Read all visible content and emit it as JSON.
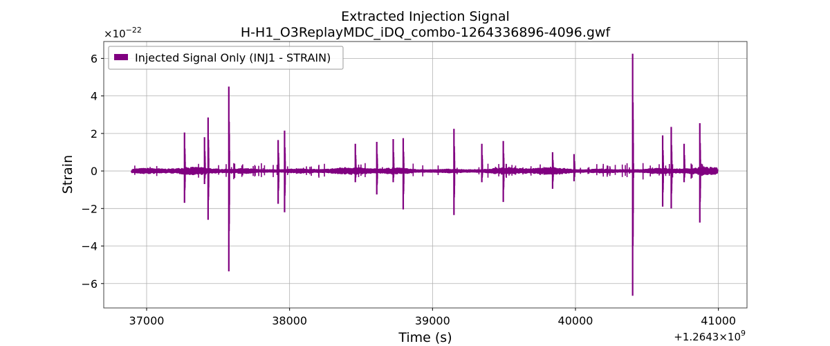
{
  "chart_data": {
    "type": "line",
    "title": "Extracted Injection Signal",
    "subtitle": "H-H1_O3ReplayMDC_iDQ_combo-1264336896-4096.gwf",
    "xlabel": "Time (s)",
    "ylabel": "Strain",
    "x_offset_label": "+1.2643×10",
    "x_offset_exponent": "9",
    "y_multiplier_label": "×10",
    "y_multiplier_exponent": "−22",
    "xlim": [
      36700,
      41200
    ],
    "ylim": [
      -7.3,
      6.9
    ],
    "x_ticks": [
      {
        "value": 37000,
        "label": "37000"
      },
      {
        "value": 38000,
        "label": "38000"
      },
      {
        "value": 39000,
        "label": "39000"
      },
      {
        "value": 40000,
        "label": "40000"
      },
      {
        "value": 41000,
        "label": "41000"
      }
    ],
    "y_ticks": [
      {
        "value": -6,
        "label": "−6"
      },
      {
        "value": -4,
        "label": "−4"
      },
      {
        "value": -2,
        "label": "−2"
      },
      {
        "value": 0,
        "label": "0"
      },
      {
        "value": 2,
        "label": "2"
      },
      {
        "value": 4,
        "label": "4"
      },
      {
        "value": 6,
        "label": "6"
      }
    ],
    "grid": true,
    "legend_position": "top-left",
    "series": [
      {
        "name": "Injected Signal Only (INJ1 - STRAIN)",
        "color": "#800080",
        "data_range": [
          36896,
          40992
        ],
        "baseline_amplitude": 0.09,
        "bursts": [
          {
            "x": 37265,
            "ymax": 2.05,
            "ymin": -1.7
          },
          {
            "x": 37405,
            "ymax": 1.8,
            "ymin": -0.7
          },
          {
            "x": 37430,
            "ymax": 2.85,
            "ymin": -2.6
          },
          {
            "x": 37575,
            "ymax": 4.5,
            "ymin": -5.35
          },
          {
            "x": 37920,
            "ymax": 1.65,
            "ymin": -1.75
          },
          {
            "x": 37965,
            "ymax": 2.15,
            "ymin": -2.2
          },
          {
            "x": 38460,
            "ymax": 1.45,
            "ymin": -0.6
          },
          {
            "x": 38610,
            "ymax": 1.55,
            "ymin": -1.25
          },
          {
            "x": 38725,
            "ymax": 1.7,
            "ymin": -0.6
          },
          {
            "x": 38795,
            "ymax": 1.75,
            "ymin": -2.05
          },
          {
            "x": 39150,
            "ymax": 2.25,
            "ymin": -2.35
          },
          {
            "x": 39345,
            "ymax": 1.45,
            "ymin": -0.6
          },
          {
            "x": 39495,
            "ymax": 1.6,
            "ymin": -1.65
          },
          {
            "x": 39840,
            "ymax": 1.0,
            "ymin": -0.95
          },
          {
            "x": 39990,
            "ymax": 0.9,
            "ymin": -0.55
          },
          {
            "x": 40400,
            "ymax": 6.25,
            "ymin": -6.65
          },
          {
            "x": 40610,
            "ymax": 1.9,
            "ymin": -1.9
          },
          {
            "x": 40670,
            "ymax": 2.35,
            "ymin": -2.0
          },
          {
            "x": 40760,
            "ymax": 1.45,
            "ymin": -0.6
          },
          {
            "x": 40870,
            "ymax": 2.55,
            "ymin": -2.75
          }
        ]
      }
    ]
  }
}
